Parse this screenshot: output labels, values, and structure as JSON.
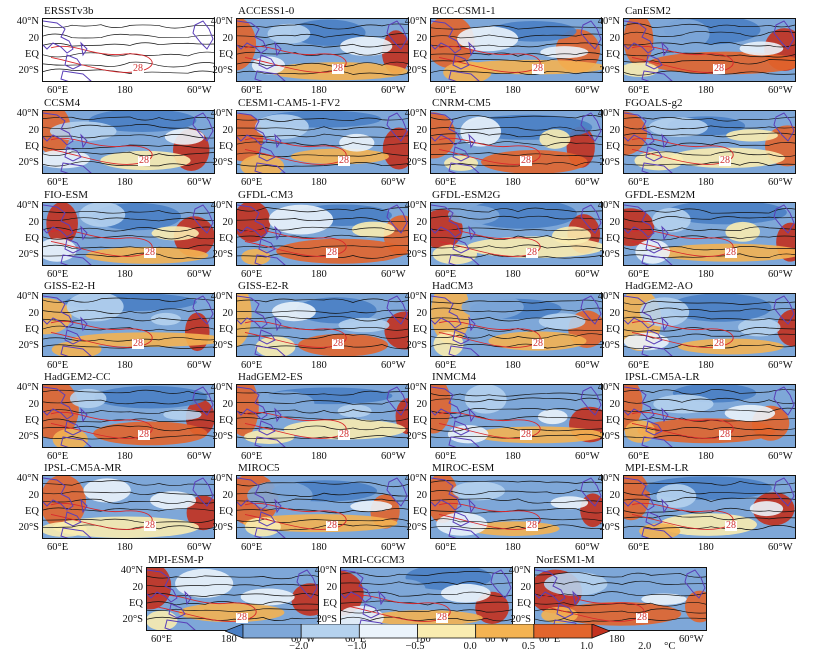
{
  "panels": [
    "ERSSTv3b",
    "ACCESS1-0",
    "BCC-CSM1-1",
    "CanESM2",
    "CCSM4",
    "CESM1-CAM5-1-FV2",
    "CNRM-CM5",
    "FGOALS-g2",
    "FIO-ESM",
    "GFDL-CM3",
    "GFDL-ESM2G",
    "GFDL-ESM2M",
    "GISS-E2-H",
    "GISS-E2-R",
    "HadCM3",
    "HadGEM2-AO",
    "HadGEM2-CC",
    "HadGEM2-ES",
    "INMCM4",
    "IPSL-CM5A-LR",
    "IPSL-CM5A-MR",
    "MIROC5",
    "MIROC-ESM",
    "MPI-ESM-LR",
    "MPI-ESM-P",
    "MRI-CGCM3",
    "NorESM1-M"
  ],
  "axes": {
    "y_ticks": [
      "40°N",
      "20",
      "EQ",
      "20°S"
    ],
    "x_ticks": [
      "60°E",
      "180",
      "60°W"
    ]
  },
  "contour_label": "28",
  "colorbar": {
    "ticks": [
      "−2.0",
      "−1.0",
      "−0.5",
      "0.0",
      "0.5",
      "1.0",
      "2.0"
    ],
    "unit": "°C",
    "colors": [
      "#4a7fc4",
      "#7ea7d8",
      "#b5d2ee",
      "#eaf3fb",
      "#f9ecb0",
      "#f4b352",
      "#e2652c",
      "#c3311e"
    ]
  },
  "chart_data": {
    "type": "heatmap",
    "x_range": [
      "60°E",
      "60°W"
    ],
    "y_range": [
      "20°S",
      "40°N"
    ],
    "panels": [
      "ERSSTv3b",
      "ACCESS1-0",
      "BCC-CSM1-1",
      "CanESM2",
      "CCSM4",
      "CESM1-CAM5-1-FV2",
      "CNRM-CM5",
      "FGOALS-g2",
      "FIO-ESM",
      "GFDL-CM3",
      "GFDL-ESM2G",
      "GFDL-ESM2M",
      "GISS-E2-H",
      "GISS-E2-R",
      "HadCM3",
      "HadGEM2-AO",
      "HadGEM2-CC",
      "HadGEM2-ES",
      "INMCM4",
      "IPSL-CM5A-LR",
      "IPSL-CM5A-MR",
      "MIROC5",
      "MIROC-ESM",
      "MPI-ESM-LR",
      "MPI-ESM-P",
      "MRI-CGCM3",
      "NorESM1-M"
    ],
    "color_levels": [
      -2.0,
      -1.0,
      -0.5,
      0.0,
      0.5,
      1.0,
      2.0
    ],
    "contour_label": 28,
    "unit": "°C"
  }
}
